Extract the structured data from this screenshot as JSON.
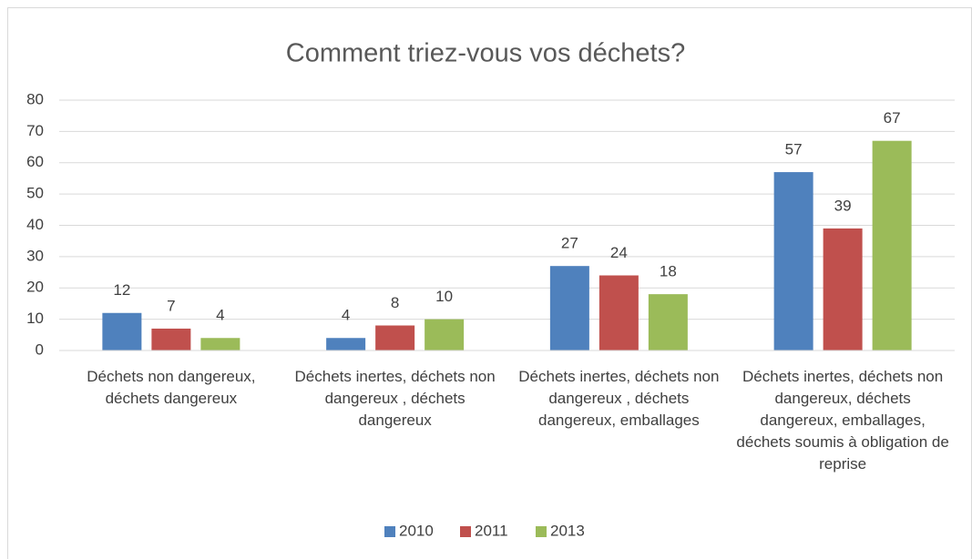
{
  "chart_data": {
    "type": "bar",
    "title": "Comment triez-vous vos déchets?",
    "categories": [
      "Déchets non dangereux, déchets dangereux",
      "Déchets inertes, déchets non dangereux , déchets dangereux",
      "Déchets inertes, déchets non dangereux , déchets dangereux, emballages",
      "Déchets inertes, déchets non dangereux, déchets dangereux, emballages, déchets soumis à obligation de reprise"
    ],
    "series": [
      {
        "name": "2010",
        "color": "#4f81bd",
        "values": [
          12,
          4,
          27,
          57
        ]
      },
      {
        "name": "2011",
        "color": "#c0504d",
        "values": [
          7,
          8,
          24,
          39
        ]
      },
      {
        "name": "2013",
        "color": "#9bbb59",
        "values": [
          4,
          10,
          18,
          67
        ]
      }
    ],
    "ylim": [
      0,
      80
    ],
    "yticks": [
      0,
      10,
      20,
      30,
      40,
      50,
      60,
      70,
      80
    ],
    "grid": true,
    "legend": "bottom"
  }
}
